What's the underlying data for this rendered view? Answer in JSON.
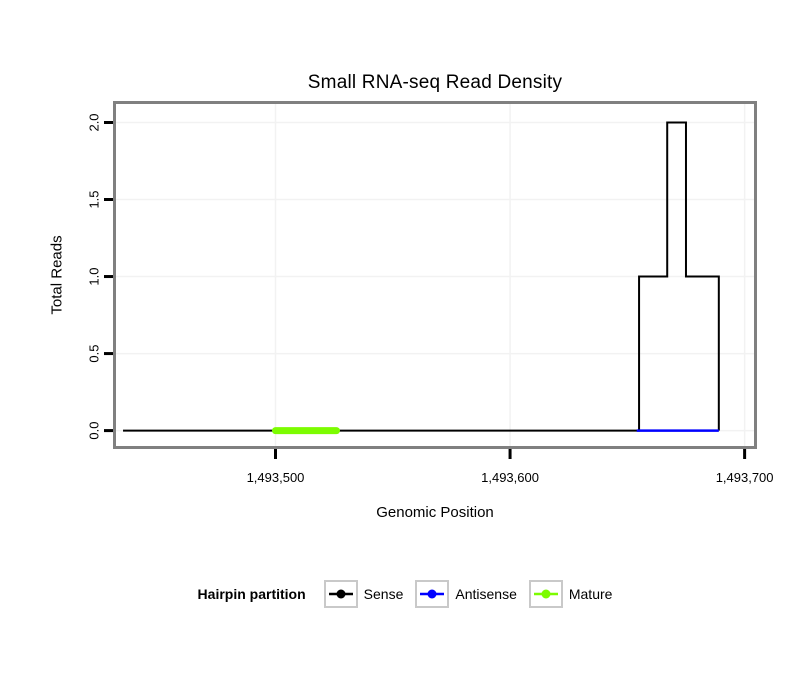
{
  "chart_data": {
    "type": "line",
    "title": "Small RNA-seq Read Density",
    "xlabel": "Genomic Position",
    "ylabel": "Total Reads",
    "xlim": [
      1493432,
      1493704
    ],
    "ylim": [
      -0.1,
      2.12
    ],
    "grid": true,
    "x_ticks": [
      {
        "value": 1493500,
        "label": "1,493,500"
      },
      {
        "value": 1493600,
        "label": "1,493,600"
      },
      {
        "value": 1493700,
        "label": "1,493,700"
      }
    ],
    "y_ticks": [
      {
        "value": 0.0,
        "label": "0.0"
      },
      {
        "value": 0.5,
        "label": "0.5"
      },
      {
        "value": 1.0,
        "label": "1.0"
      },
      {
        "value": 1.5,
        "label": "1.5"
      },
      {
        "value": 2.0,
        "label": "2.0"
      }
    ],
    "series": [
      {
        "name": "Sense",
        "color": "#000000",
        "style": "step",
        "line_width": 2,
        "points": [
          [
            1493435,
            0
          ],
          [
            1493655,
            0
          ],
          [
            1493655,
            1
          ],
          [
            1493667,
            1
          ],
          [
            1493667,
            2
          ],
          [
            1493675,
            2
          ],
          [
            1493675,
            1
          ],
          [
            1493689,
            1
          ],
          [
            1493689,
            0
          ]
        ]
      },
      {
        "name": "Antisense",
        "color": "#0000FF",
        "style": "line",
        "line_width": 2.5,
        "points": [
          [
            1493654,
            0
          ],
          [
            1493689,
            0
          ]
        ]
      },
      {
        "name": "Mature",
        "color": "#7CFC00",
        "style": "thick-segment",
        "line_width": 7,
        "points": [
          [
            1493500,
            0
          ],
          [
            1493526,
            0
          ]
        ]
      }
    ],
    "legend": {
      "title": "Hairpin partition",
      "position": "bottom",
      "entries": [
        {
          "label": "Sense",
          "color": "#000000"
        },
        {
          "label": "Antisense",
          "color": "#0000FF"
        },
        {
          "label": "Mature",
          "color": "#7CFC00"
        }
      ]
    }
  }
}
